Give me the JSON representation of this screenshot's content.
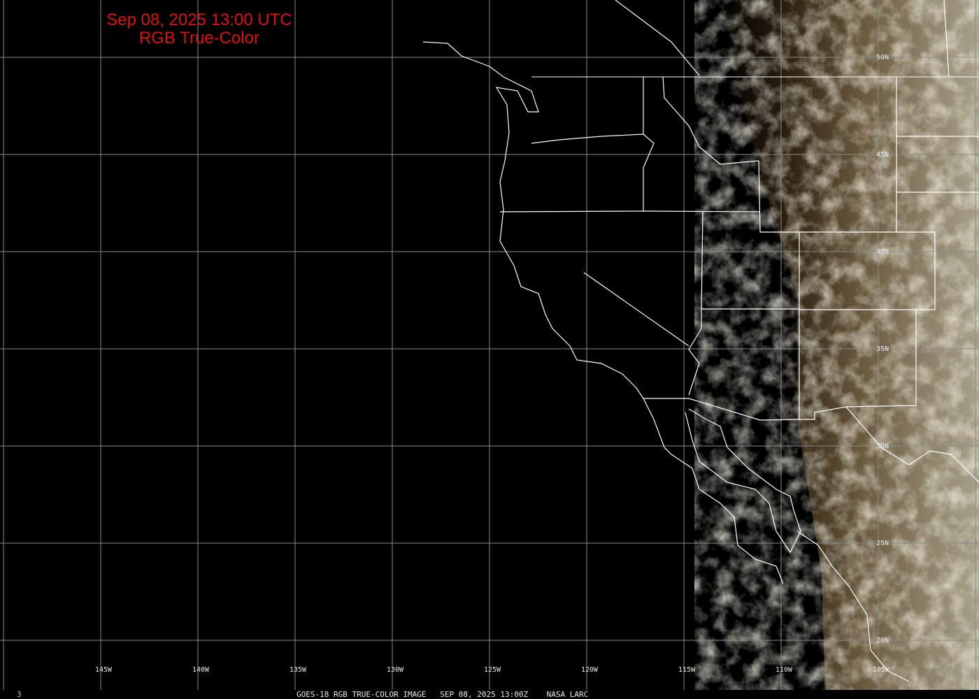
{
  "title": {
    "line1": "Sep 08, 2025 13:00 UTC",
    "line2": "RGB True-Color",
    "color": "#e01010"
  },
  "longitude_labels": [
    "145W",
    "140W",
    "135W",
    "130W",
    "125W",
    "120W",
    "115W",
    "110W",
    "105W"
  ],
  "latitude_labels": [
    "50N",
    "45N",
    "40N",
    "35N",
    "30N",
    "25N",
    "20N"
  ],
  "footer": {
    "frame_number": "3",
    "caption": "GOES-18 RGB TRUE-COLOR IMAGE   SEP 08, 2025 13:00Z    NASA LARC"
  },
  "colors": {
    "background": "#000000",
    "grid": "#8a8a8a",
    "borders": "#ffffff",
    "title": "#e01010",
    "frame_number": "#d8c040"
  }
}
